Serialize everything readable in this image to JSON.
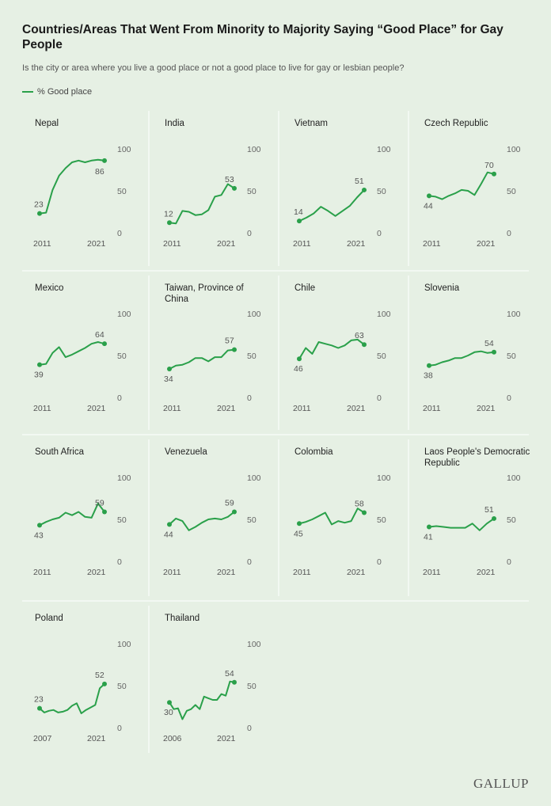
{
  "header": {
    "title": "Countries/Areas That Went From Minority to Majority Saying “Good Place” for Gay People",
    "subtitle": "Is the city or area where you live a good place or not a good place to live for gay or lesbian people?",
    "legend_label": "% Good place",
    "brand": "GALLUP"
  },
  "colors": {
    "line": "#2aa04a",
    "background": "#e6f0e4",
    "divider": "#ffffff"
  },
  "chart_data": [
    {
      "type": "line",
      "title": "Nepal",
      "x_start": "2011",
      "x_end": "2021",
      "ylim": [
        0,
        100
      ],
      "yticks": [
        "100",
        "50",
        "0"
      ],
      "values": [
        23,
        24,
        51,
        68,
        77,
        84,
        86,
        84,
        86,
        87,
        86
      ],
      "first_label": "23",
      "last_label": "86"
    },
    {
      "type": "line",
      "title": "India",
      "x_start": "2011",
      "x_end": "2021",
      "ylim": [
        0,
        100
      ],
      "yticks": [
        "100",
        "50",
        "0"
      ],
      "values": [
        12,
        11,
        26,
        25,
        21,
        22,
        27,
        43,
        45,
        58,
        53
      ],
      "first_label": "12",
      "last_label": "53"
    },
    {
      "type": "line",
      "title": "Vietnam",
      "x_start": "2011",
      "x_end": "2021",
      "ylim": [
        0,
        100
      ],
      "yticks": [
        "100",
        "50",
        "0"
      ],
      "values": [
        14,
        18,
        23,
        31,
        26,
        20,
        26,
        32,
        42,
        51
      ],
      "first_label": "14",
      "last_label": "51"
    },
    {
      "type": "line",
      "title": "Czech Republic",
      "x_start": "2011",
      "x_end": "2021",
      "ylim": [
        0,
        100
      ],
      "yticks": [
        "100",
        "50",
        "0"
      ],
      "values": [
        44,
        43,
        40,
        44,
        47,
        51,
        50,
        45,
        58,
        72,
        70
      ],
      "first_label": "44",
      "last_label": "70"
    },
    {
      "type": "line",
      "title": "Mexico",
      "x_start": "2011",
      "x_end": "2021",
      "ylim": [
        0,
        100
      ],
      "yticks": [
        "100",
        "50",
        "0"
      ],
      "values": [
        39,
        40,
        53,
        60,
        48,
        51,
        55,
        59,
        64,
        66,
        64
      ],
      "first_label": "39",
      "last_label": "64"
    },
    {
      "type": "line",
      "title": "Taiwan, Province of China",
      "x_start": "2011",
      "x_end": "2021",
      "ylim": [
        0,
        100
      ],
      "yticks": [
        "100",
        "50",
        "0"
      ],
      "values": [
        34,
        38,
        39,
        42,
        47,
        47,
        43,
        48,
        48,
        56,
        57
      ],
      "first_label": "34",
      "last_label": "57"
    },
    {
      "type": "line",
      "title": "Chile",
      "x_start": "2011",
      "x_end": "2021",
      "ylim": [
        0,
        100
      ],
      "yticks": [
        "100",
        "50",
        "0"
      ],
      "values": [
        46,
        59,
        52,
        66,
        64,
        62,
        59,
        62,
        68,
        69,
        63
      ],
      "first_label": "46",
      "last_label": "63"
    },
    {
      "type": "line",
      "title": "Slovenia",
      "x_start": "2011",
      "x_end": "2021",
      "ylim": [
        0,
        100
      ],
      "yticks": [
        "100",
        "50",
        "0"
      ],
      "values": [
        38,
        39,
        42,
        44,
        47,
        47,
        50,
        54,
        55,
        53,
        54
      ],
      "first_label": "38",
      "last_label": "54"
    },
    {
      "type": "line",
      "title": "South Africa",
      "x_start": "2011",
      "x_end": "2021",
      "ylim": [
        0,
        100
      ],
      "yticks": [
        "100",
        "50",
        "0"
      ],
      "values": [
        43,
        47,
        50,
        52,
        58,
        55,
        59,
        53,
        52,
        69,
        59
      ],
      "first_label": "43",
      "last_label": "59"
    },
    {
      "type": "line",
      "title": "Venezuela",
      "x_start": "2011",
      "x_end": "2021",
      "ylim": [
        0,
        100
      ],
      "yticks": [
        "100",
        "50",
        "0"
      ],
      "values": [
        44,
        51,
        48,
        37,
        41,
        46,
        50,
        51,
        50,
        53,
        59
      ],
      "first_label": "44",
      "last_label": "59"
    },
    {
      "type": "line",
      "title": "Colombia",
      "x_start": "2011",
      "x_end": "2021",
      "ylim": [
        0,
        100
      ],
      "yticks": [
        "100",
        "50",
        "0"
      ],
      "values": [
        45,
        47,
        50,
        54,
        58,
        44,
        48,
        46,
        48,
        63,
        58
      ],
      "first_label": "45",
      "last_label": "58"
    },
    {
      "type": "line",
      "title": "Laos People's Democratic Republic",
      "x_start": "2011",
      "x_end": "2021",
      "ylim": [
        0,
        100
      ],
      "yticks": [
        "100",
        "50",
        "0"
      ],
      "values": [
        41,
        42,
        41,
        40,
        40,
        40,
        45,
        37,
        45,
        51
      ],
      "first_label": "41",
      "last_label": "51"
    },
    {
      "type": "line",
      "title": "Poland",
      "x_start": "2007",
      "x_end": "2021",
      "ylim": [
        0,
        100
      ],
      "yticks": [
        "100",
        "50",
        "0"
      ],
      "values": [
        23,
        18,
        20,
        21,
        18,
        19,
        21,
        26,
        29,
        17,
        21,
        24,
        27,
        47,
        52
      ],
      "first_label": "23",
      "last_label": "52"
    },
    {
      "type": "line",
      "title": "Thailand",
      "x_start": "2006",
      "x_end": "2021",
      "ylim": [
        0,
        100
      ],
      "yticks": [
        "100",
        "50",
        "0"
      ],
      "values": [
        30,
        22,
        23,
        10,
        20,
        22,
        27,
        22,
        37,
        35,
        33,
        33,
        40,
        38,
        55,
        54
      ],
      "first_label": "30",
      "last_label": "54"
    }
  ]
}
